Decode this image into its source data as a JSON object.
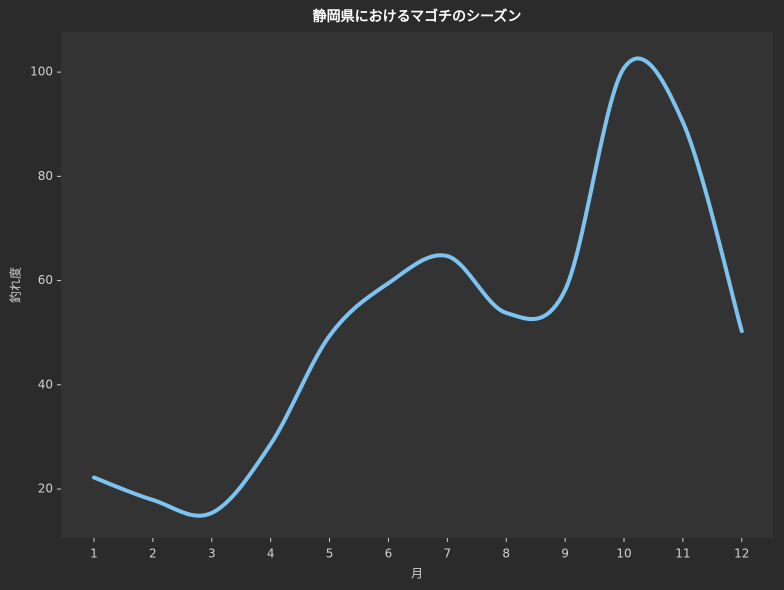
{
  "chart_data": {
    "type": "line",
    "title": "静岡県におけるマゴチのシーズン",
    "x_label": "月",
    "y_label": "釣れ度",
    "x": [
      1,
      2,
      3,
      4,
      5,
      6,
      7,
      8,
      9,
      10,
      11,
      12
    ],
    "series": [
      {
        "name": "釣れ度",
        "color": "#7cc3f0",
        "values": [
          22.2,
          17.9,
          15.4,
          28.6,
          49.4,
          59.5,
          64.7,
          53.8,
          58.2,
          100.8,
          90.4,
          50.3
        ]
      }
    ],
    "xlim": [
      0.44,
      12.53
    ],
    "xticks": [
      1,
      2,
      3,
      4,
      5,
      6,
      7,
      8,
      9,
      10,
      11,
      12
    ],
    "ylim": [
      10.6,
      107.7
    ],
    "yticks": [
      20,
      40,
      60,
      80,
      100
    ],
    "smooth": true
  }
}
